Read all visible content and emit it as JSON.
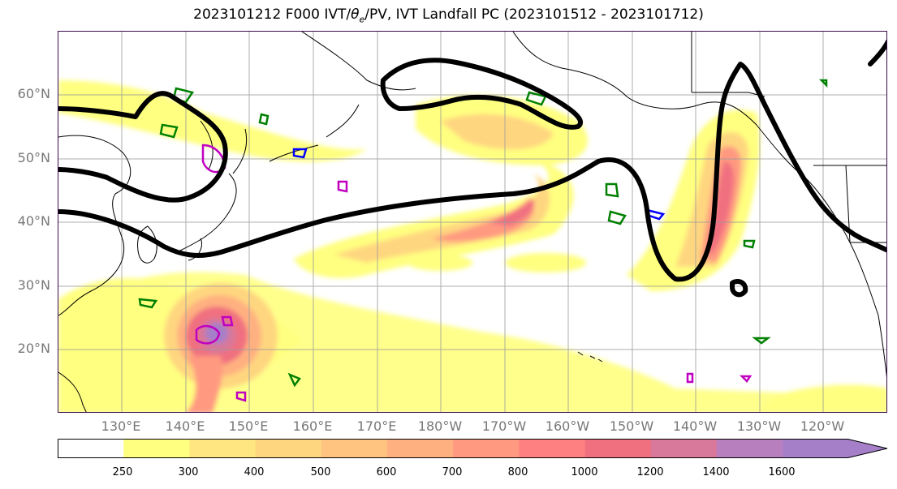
{
  "title": "2023101212 F000 IVT/θe/PV, IVT Landfall PC (2023101512 - 2023101712)",
  "title_parts": {
    "prefix": "2023101212 F000 IVT/",
    "theta": "θ",
    "sub": "e",
    "suffix": "/PV, IVT Landfall PC (2023101512 - 2023101712)"
  },
  "lat_labels": [
    "60°N",
    "50°N",
    "40°N",
    "30°N",
    "20°N"
  ],
  "lon_labels": [
    "130°E",
    "140°E",
    "150°E",
    "160°E",
    "170°E",
    "180°W",
    "170°W",
    "160°W",
    "150°W",
    "140°W",
    "130°W",
    "120°W"
  ],
  "colorbar": {
    "ticks": [
      "250",
      "300",
      "400",
      "500",
      "600",
      "700",
      "800",
      "1000",
      "1200",
      "1400",
      "1600"
    ],
    "colors": [
      "#ffffff",
      "#ffff80",
      "#ffe680",
      "#ffd680",
      "#ffc480",
      "#ffb080",
      "#ff9a80",
      "#ff8080",
      "#f07080",
      "#d8789a",
      "#b87fbf",
      "#a57fc8"
    ]
  },
  "colors": {
    "contour_black": "#000000",
    "pv_green": "#008000",
    "pv_blue": "#0000ff",
    "pv_magenta": "#c000c0",
    "coast": "#000000",
    "grid": "#999999"
  }
}
